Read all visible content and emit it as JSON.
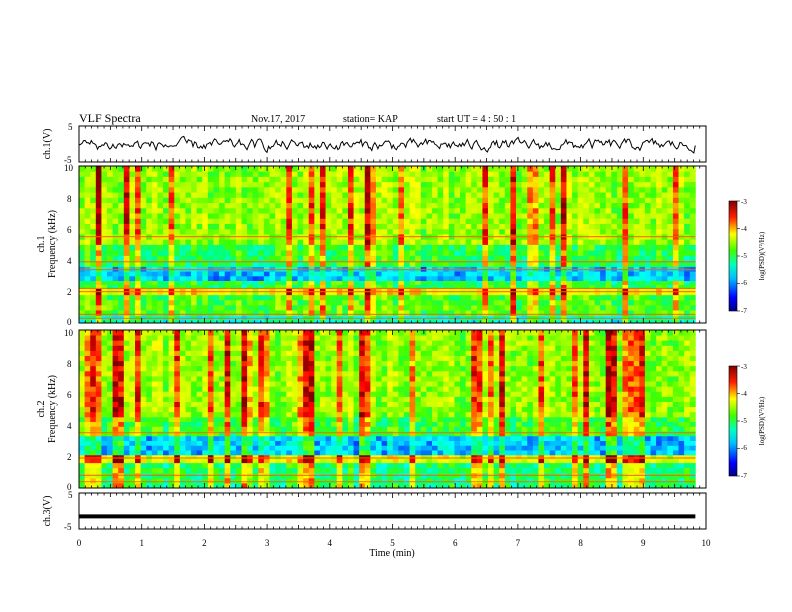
{
  "header": {
    "title": "VLF Spectra",
    "date": "Nov.17, 2017",
    "station": "station= KAP",
    "start": "start  UT =   4 : 50 : 1"
  },
  "chart_data": [
    {
      "type": "line",
      "name": "waveform-ch1",
      "ylabel": "ch.1(V)",
      "ylim": [
        -5,
        5
      ],
      "yticks": [
        "5",
        "-5"
      ],
      "xlim": [
        0,
        10
      ],
      "x_end": 9.83,
      "signal": "noisy waveform fluctuating roughly between -2.5 and 2 V"
    },
    {
      "type": "heatmap",
      "name": "spectrogram-ch1",
      "ylabel": "ch.1\nFrequency (kHz)",
      "ylim": [
        0,
        10
      ],
      "yticks": [
        "0",
        "2",
        "4",
        "6",
        "8",
        "10"
      ],
      "xlim": [
        0,
        10
      ],
      "x_end": 9.83,
      "colorbar": {
        "label": "log(PSD)(V²/Hz)",
        "range": [
          -7,
          -3
        ],
        "ticks": [
          "-3",
          "-4",
          "-5",
          "-6",
          "-7"
        ]
      },
      "bands": [
        {
          "f": [
            0,
            0.5
          ],
          "level": -5.6
        },
        {
          "f": [
            0.5,
            1.8
          ],
          "level": -5.0
        },
        {
          "f": [
            1.8,
            2.2
          ],
          "level": -4.3
        },
        {
          "f": [
            2.2,
            2.7
          ],
          "level": -5.2
        },
        {
          "f": [
            2.7,
            3.6
          ],
          "level": -6.0
        },
        {
          "f": [
            3.6,
            5.0
          ],
          "level": -5.2
        },
        {
          "f": [
            5.0,
            10.0
          ],
          "level": -4.7
        }
      ],
      "lines_khz": [
        0.3,
        0.55,
        2.0,
        2.2,
        3.4,
        3.9,
        5.5
      ]
    },
    {
      "type": "heatmap",
      "name": "spectrogram-ch2",
      "ylabel": "ch.2\nFrequency (kHz)",
      "ylim": [
        0,
        10
      ],
      "yticks": [
        "0",
        "2",
        "4",
        "6",
        "8",
        "10"
      ],
      "xlim": [
        0,
        10
      ],
      "x_end": 9.83,
      "colorbar": {
        "label": "log(PSD)(V²/Hz)",
        "range": [
          -7,
          -3
        ],
        "ticks": [
          "-3",
          "-4",
          "-5",
          "-6",
          "-7"
        ]
      },
      "bands": [
        {
          "f": [
            0,
            1.6
          ],
          "level": -5.3
        },
        {
          "f": [
            1.6,
            2.1
          ],
          "level": -4.4
        },
        {
          "f": [
            2.1,
            3.3
          ],
          "level": -6.0
        },
        {
          "f": [
            3.3,
            4.5
          ],
          "level": -5.1
        },
        {
          "f": [
            4.5,
            10.0
          ],
          "level": -4.7
        }
      ],
      "lines_khz": [
        0.4,
        0.8,
        1.9,
        3.5
      ]
    },
    {
      "type": "line",
      "name": "waveform-ch3",
      "ylabel": "ch.3(V)",
      "ylim": [
        -5,
        5
      ],
      "yticks": [
        "5",
        "-5"
      ],
      "xlim": [
        0,
        10
      ],
      "x_end": 9.83,
      "signal": "flat at about -1.5 V"
    }
  ],
  "x_axis": {
    "label": "Time (min)",
    "ticks": [
      "0",
      "1",
      "2",
      "3",
      "4",
      "5",
      "6",
      "7",
      "8",
      "9",
      "10"
    ]
  },
  "colors": {
    "colormap": [
      "#000080",
      "#0000ff",
      "#00a0ff",
      "#00ffff",
      "#00ff80",
      "#40ff00",
      "#c0ff00",
      "#ffff00",
      "#ff8000",
      "#ff0000",
      "#800000"
    ]
  }
}
